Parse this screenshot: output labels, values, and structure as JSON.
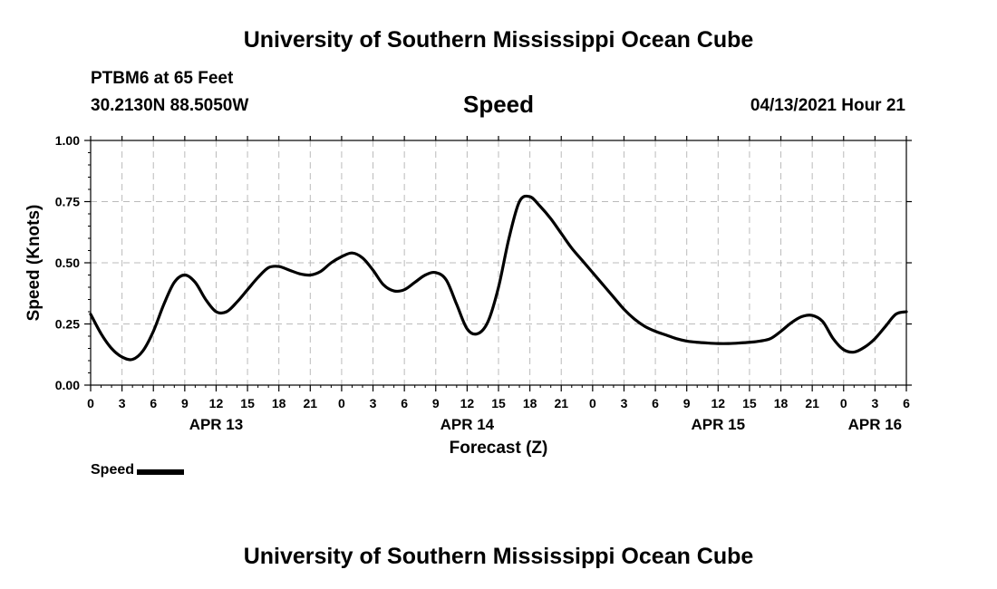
{
  "header": {
    "title": "University of Southern Mississippi Ocean Cube",
    "station": "PTBM6 at 65 Feet",
    "coords": "30.2130N  88.5050W",
    "chart_title": "Speed",
    "datetime": "04/13/2021 Hour 21"
  },
  "footer": {
    "title": "University of Southern Mississippi Ocean Cube"
  },
  "legend": {
    "label": "Speed",
    "color": "#000000"
  },
  "chart_data": {
    "type": "line",
    "title": "Speed",
    "xlabel": "Forecast (Z)",
    "ylabel": "Speed (Knots)",
    "ylim": [
      0,
      1
    ],
    "xlim": [
      0,
      78
    ],
    "x_unit": "hours since APR 13 00Z",
    "grid": true,
    "y_ticks": [
      "0.00",
      "0.25",
      "0.50",
      "0.75",
      "1.00"
    ],
    "x_tick_labels": [
      "0",
      "3",
      "6",
      "9",
      "12",
      "15",
      "18",
      "21",
      "0",
      "3",
      "6",
      "9",
      "12",
      "15",
      "18",
      "21",
      "0",
      "3",
      "6",
      "9",
      "12",
      "15",
      "18",
      "21",
      "0",
      "3",
      "6"
    ],
    "date_labels": [
      {
        "label": "APR 13",
        "x": 12
      },
      {
        "label": "APR 14",
        "x": 36
      },
      {
        "label": "APR 15",
        "x": 60
      },
      {
        "label": "APR 16",
        "x": 75
      }
    ],
    "series": [
      {
        "name": "Speed",
        "x": [
          0,
          1,
          2,
          3,
          4,
          5,
          6,
          7,
          8,
          9,
          10,
          11,
          12,
          13,
          14,
          15,
          16,
          17,
          18,
          19,
          20,
          21,
          22,
          23,
          24,
          25,
          26,
          27,
          28,
          29,
          30,
          31,
          32,
          33,
          34,
          35,
          36,
          37,
          38,
          39,
          40,
          41,
          42,
          43,
          44,
          45,
          46,
          47,
          48,
          49,
          50,
          51,
          52,
          53,
          54,
          55,
          56,
          57,
          58,
          59,
          60,
          61,
          62,
          63,
          64,
          65,
          66,
          67,
          68,
          69,
          70,
          71,
          72,
          73,
          74,
          75,
          76,
          77,
          78
        ],
        "values": [
          0.29,
          0.21,
          0.15,
          0.115,
          0.105,
          0.14,
          0.22,
          0.33,
          0.42,
          0.45,
          0.42,
          0.35,
          0.3,
          0.3,
          0.34,
          0.39,
          0.44,
          0.48,
          0.485,
          0.47,
          0.455,
          0.45,
          0.465,
          0.5,
          0.525,
          0.54,
          0.52,
          0.47,
          0.41,
          0.385,
          0.39,
          0.42,
          0.45,
          0.46,
          0.43,
          0.33,
          0.23,
          0.21,
          0.26,
          0.4,
          0.6,
          0.75,
          0.77,
          0.73,
          0.68,
          0.62,
          0.56,
          0.51,
          0.46,
          0.41,
          0.36,
          0.31,
          0.27,
          0.24,
          0.22,
          0.205,
          0.19,
          0.18,
          0.175,
          0.172,
          0.17,
          0.17,
          0.172,
          0.175,
          0.18,
          0.19,
          0.22,
          0.255,
          0.28,
          0.285,
          0.26,
          0.19,
          0.145,
          0.135,
          0.155,
          0.19,
          0.24,
          0.29,
          0.3
        ]
      }
    ]
  }
}
